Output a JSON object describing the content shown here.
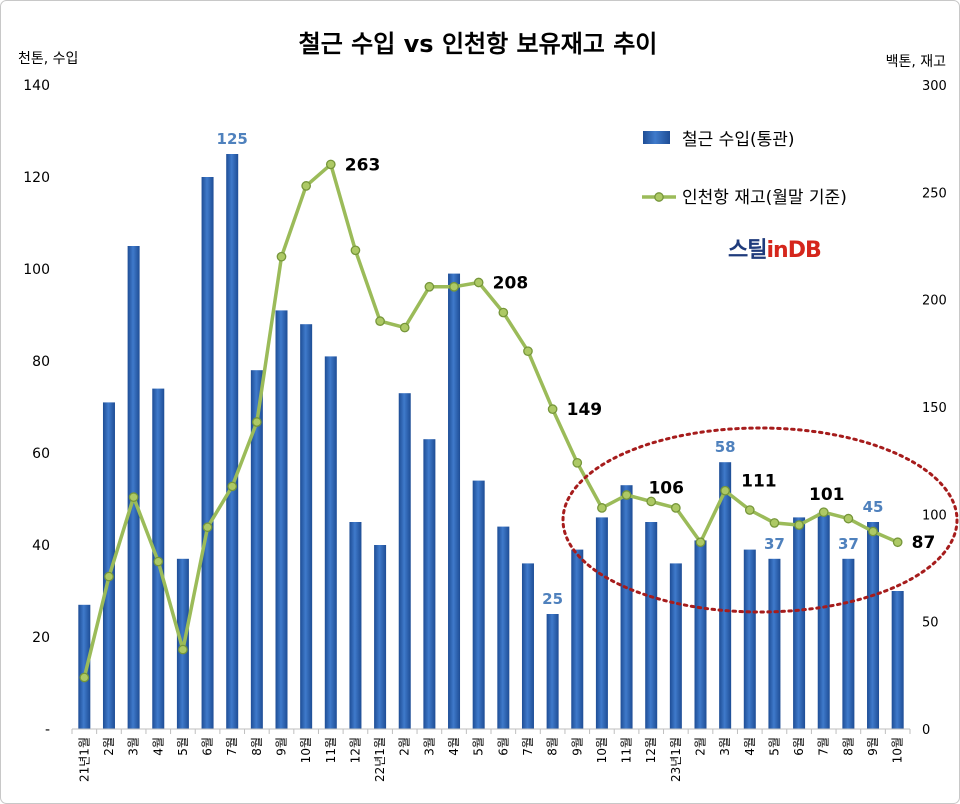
{
  "chart_data": {
    "type": "bar",
    "title": "철근 수입 vs 인천항 보유재고 추이",
    "ylabel_left": "천톤, 수입",
    "ylabel_right": "백톤, 재고",
    "categories": [
      "21년1월",
      "2월",
      "3월",
      "4월",
      "5월",
      "6월",
      "7월",
      "8월",
      "9월",
      "10월",
      "11월",
      "12월",
      "22년1월",
      "2월",
      "3월",
      "4월",
      "5월",
      "6월",
      "7월",
      "8월",
      "9월",
      "10월",
      "11월",
      "12월",
      "23년1월",
      "2월",
      "3월",
      "4월",
      "5월",
      "6월",
      "7월",
      "8월",
      "9월",
      "10월"
    ],
    "y_left": {
      "range": [
        0,
        140
      ],
      "ticks": [
        "-",
        "20",
        "40",
        "60",
        "80",
        "100",
        "120",
        "140"
      ]
    },
    "y_right": {
      "range": [
        0,
        300
      ],
      "ticks": [
        "0",
        "50",
        "100",
        "150",
        "200",
        "250",
        "300"
      ]
    },
    "series": [
      {
        "name": "철근 수입(통관)",
        "type": "bar",
        "axis": "left",
        "values": [
          27,
          71,
          105,
          74,
          37,
          120,
          125,
          78,
          91,
          88,
          81,
          45,
          40,
          73,
          63,
          99,
          54,
          44,
          36,
          25,
          39,
          46,
          53,
          45,
          36,
          41,
          58,
          39,
          37,
          46,
          47,
          37,
          45,
          30
        ],
        "labeled_indices": [
          6,
          19,
          26,
          28,
          31,
          32
        ]
      },
      {
        "name": "인천항 재고(월말 기준)",
        "type": "line",
        "axis": "right",
        "values": [
          24,
          71,
          108,
          78,
          37,
          94,
          113,
          143,
          220,
          253,
          263,
          223,
          190,
          187,
          206,
          206,
          208,
          194,
          176,
          149,
          124,
          103,
          109,
          106,
          103,
          87,
          111,
          102,
          96,
          95,
          101,
          98,
          92,
          87
        ],
        "labels": [
          {
            "index": 10,
            "position": "right"
          },
          {
            "index": 16,
            "position": "right"
          },
          {
            "index": 19,
            "position": "right"
          },
          {
            "index": 23,
            "position": "above-right"
          },
          {
            "index": 26,
            "position": "upper-right"
          },
          {
            "index": 30,
            "position": "above"
          },
          {
            "index": 33,
            "position": "right"
          }
        ]
      }
    ],
    "legend": {
      "position": "top-right"
    },
    "grid": false,
    "colors": {
      "bar": "#3F7ACB",
      "bar_edge": "#1E4D95",
      "bar_label": "#4F81BD",
      "line": "#9BBB59",
      "line_dark": "#76963A",
      "marker_fill": "#ADC965",
      "line_label": "#000000",
      "annotation": "#A61C1C",
      "axis": "#BFBFBF"
    }
  },
  "logo": {
    "part1": "스틸",
    "part2": "in",
    "part3": "DB"
  }
}
